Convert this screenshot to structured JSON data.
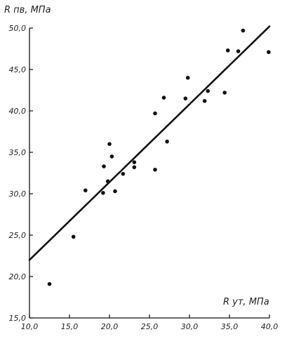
{
  "chart_data": {
    "type": "scatter",
    "title": "",
    "ylabel": "R пв, МПа",
    "xlabel": "R ут, МПа",
    "xlim": [
      10.0,
      40.0
    ],
    "ylim": [
      15.0,
      50.0
    ],
    "x_ticks": [
      "10,0",
      "15,0",
      "20,0",
      "25,0",
      "30,0",
      "35,0",
      "40,0"
    ],
    "y_ticks": [
      "15,0",
      "20,0",
      "25,0",
      "30,0",
      "35,0",
      "40,0",
      "45,0",
      "50,0"
    ],
    "grid": false,
    "series": [
      {
        "points": [
          {
            "x": 12.5,
            "y": 19.1
          },
          {
            "x": 15.5,
            "y": 24.8
          },
          {
            "x": 17.0,
            "y": 30.4
          },
          {
            "x": 19.2,
            "y": 30.1
          },
          {
            "x": 19.3,
            "y": 33.3
          },
          {
            "x": 19.8,
            "y": 31.5
          },
          {
            "x": 20.0,
            "y": 36.0
          },
          {
            "x": 20.3,
            "y": 34.5
          },
          {
            "x": 20.7,
            "y": 30.3
          },
          {
            "x": 21.7,
            "y": 32.4
          },
          {
            "x": 23.1,
            "y": 33.8
          },
          {
            "x": 23.1,
            "y": 33.2
          },
          {
            "x": 25.7,
            "y": 39.7
          },
          {
            "x": 25.7,
            "y": 32.9
          },
          {
            "x": 26.8,
            "y": 41.6
          },
          {
            "x": 27.2,
            "y": 36.3
          },
          {
            "x": 29.5,
            "y": 41.5
          },
          {
            "x": 29.8,
            "y": 44.0
          },
          {
            "x": 31.9,
            "y": 41.2
          },
          {
            "x": 32.3,
            "y": 42.4
          },
          {
            "x": 34.4,
            "y": 42.2
          },
          {
            "x": 34.8,
            "y": 47.3
          },
          {
            "x": 36.1,
            "y": 47.2
          },
          {
            "x": 36.7,
            "y": 49.7
          },
          {
            "x": 39.9,
            "y": 47.1
          }
        ]
      }
    ],
    "fit_line": {
      "x": [
        10.0,
        40.0
      ],
      "y": [
        22.0,
        50.2
      ]
    }
  }
}
